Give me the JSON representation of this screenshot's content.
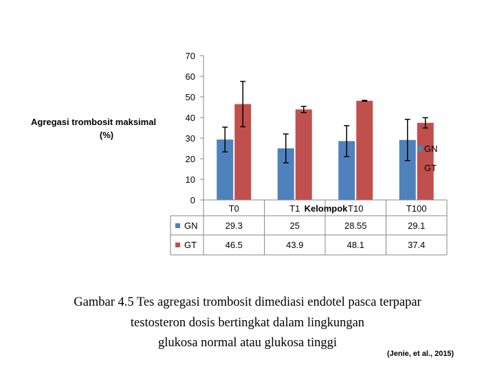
{
  "chart_data": {
    "type": "bar",
    "ylabel": "Agregasi trombosit maksimal (%)",
    "xlabel": "Kelompok",
    "categories": [
      "T0",
      "T1",
      "T10",
      "T100"
    ],
    "ylim": [
      0,
      70
    ],
    "yticks": [
      0,
      10,
      20,
      30,
      40,
      50,
      60,
      70
    ],
    "grid": false,
    "legend_position": "right",
    "series": [
      {
        "name": "GN",
        "color": "#4f81bd",
        "values": [
          29.3,
          25,
          28.55,
          29.1
        ],
        "error": [
          6,
          7,
          7.5,
          10
        ],
        "table_values": [
          "29.3",
          "25",
          "28.55",
          "29.1"
        ]
      },
      {
        "name": "GT",
        "color": "#c0504d",
        "values": [
          46.5,
          43.9,
          48.1,
          37.4
        ],
        "error": [
          11,
          1.5,
          0.2,
          2.5
        ],
        "table_values": [
          "46.5",
          "43.9",
          "48.1",
          "37.4"
        ]
      }
    ]
  },
  "caption": {
    "line1": "Gambar 4.5 Tes agregasi trombosit dimediasi endotel pasca terpapar",
    "line2": "testosteron dosis bertingkat dalam lingkungan",
    "line3": "glukosa normal atau glukosa tinggi"
  },
  "citation": "(Jenie, et al., 2015)"
}
